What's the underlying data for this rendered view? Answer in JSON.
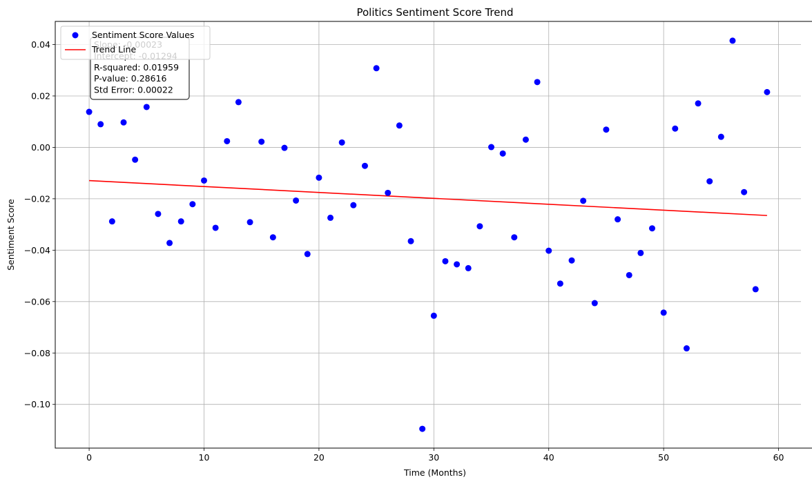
{
  "chart_data": {
    "type": "scatter",
    "title": "Politics Sentiment Score Trend",
    "xlabel": "Time (Months)",
    "ylabel": "Sentiment Score",
    "xlim": [
      -2.95,
      61.95
    ],
    "ylim": [
      -0.117,
      0.049
    ],
    "xticks": [
      0,
      10,
      20,
      30,
      40,
      50,
      60
    ],
    "xtick_labels": [
      "0",
      "10",
      "20",
      "30",
      "40",
      "50",
      "60"
    ],
    "yticks": [
      -0.1,
      -0.08,
      -0.06,
      -0.04,
      -0.02,
      0.0,
      0.02,
      0.04
    ],
    "ytick_labels": [
      "−0.10",
      "−0.08",
      "−0.06",
      "−0.04",
      "−0.02",
      "0.00",
      "0.02",
      "0.04"
    ],
    "grid": true,
    "legend_placement": "upper-left",
    "series": [
      {
        "name": "Sentiment Score Values",
        "kind": "scatter",
        "color": "#0000ff",
        "x": [
          0,
          1,
          2,
          3,
          4,
          5,
          6,
          7,
          8,
          9,
          10,
          11,
          12,
          13,
          14,
          15,
          16,
          17,
          18,
          19,
          20,
          21,
          22,
          23,
          24,
          25,
          26,
          27,
          28,
          29,
          30,
          31,
          32,
          33,
          34,
          35,
          36,
          37,
          38,
          39,
          40,
          41,
          42,
          43,
          44,
          45,
          46,
          47,
          48,
          49,
          50,
          51,
          52,
          53,
          54,
          55,
          56,
          57,
          58,
          59
        ],
        "y": [
          0.0138,
          0.009,
          -0.0288,
          0.0097,
          -0.0048,
          0.0157,
          -0.0259,
          -0.0372,
          -0.0288,
          -0.0221,
          -0.0129,
          -0.0313,
          0.0024,
          0.0176,
          -0.0291,
          0.0022,
          -0.035,
          -0.0002,
          -0.0207,
          -0.0415,
          -0.0118,
          -0.0274,
          0.0019,
          -0.0225,
          -0.0072,
          0.0308,
          -0.0177,
          0.0085,
          -0.0365,
          -0.1095,
          -0.0655,
          -0.0443,
          -0.0455,
          -0.047,
          -0.0307,
          0.0001,
          -0.0024,
          -0.035,
          0.003,
          0.0254,
          -0.0402,
          -0.053,
          -0.044,
          -0.0208,
          -0.0606,
          0.0069,
          -0.028,
          -0.0497,
          -0.0411,
          -0.0315,
          -0.0643,
          0.0073,
          -0.0782,
          0.0171,
          -0.0132,
          0.0041,
          0.0415,
          -0.0174,
          -0.0552,
          0.0215
        ]
      },
      {
        "name": "Trend Line",
        "kind": "line",
        "color": "#ff0000",
        "x": [
          0,
          59
        ],
        "y": [
          -0.01294,
          -0.02651
        ]
      }
    ],
    "stats_lines": [
      "Slope: -0.00023",
      "Intercept: -0.01294",
      "R-squared: 0.01959",
      "P-value: 0.28616",
      "Std Error: 0.00022"
    ]
  }
}
